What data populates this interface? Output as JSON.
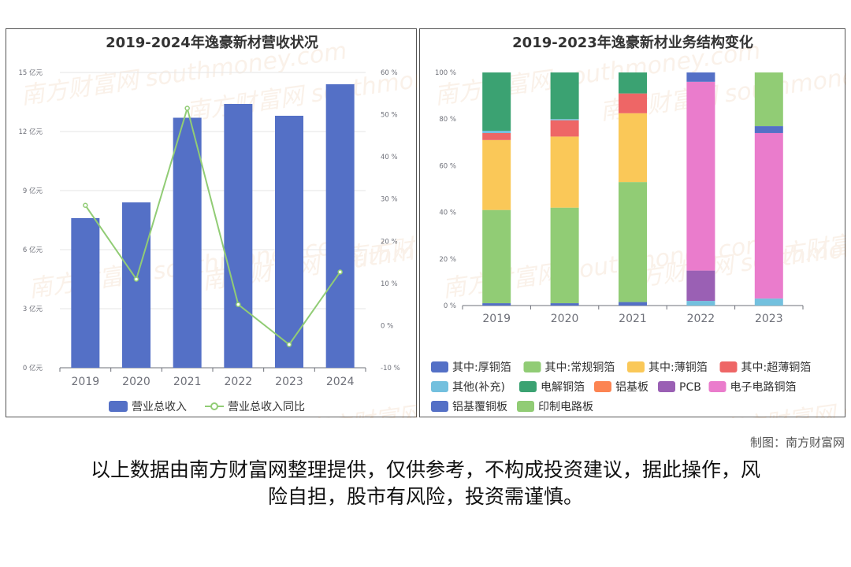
{
  "colors": {
    "bar": "#5470c6",
    "line": "#91cc75",
    "stack": [
      "#5470c6",
      "#91cc75",
      "#fac858",
      "#ee6666",
      "#73c0de",
      "#3ba272",
      "#fc8452",
      "#9a60b4",
      "#ea7ccc",
      "#5470c6",
      "#91cc75"
    ]
  },
  "watermark": "南方财富网 southmoney.com",
  "credit": "制图：南方财富网",
  "disclaimer_line1": "以上数据由南方财富网整理提供，仅供参考，不构成投资建议，据此操作，风",
  "disclaimer_line2": "险自担，股市有风险，投资需谨慎。",
  "chart_data": [
    {
      "type": "bar",
      "title": "2019-2024年逸豪新材营收状况",
      "categories": [
        "2019",
        "2020",
        "2021",
        "2022",
        "2023",
        "2024"
      ],
      "series": [
        {
          "name": "营业总收入",
          "type": "bar",
          "axis": "left",
          "values": [
            7.6,
            8.4,
            12.7,
            13.4,
            12.8,
            14.4
          ]
        },
        {
          "name": "营业总收入同比",
          "type": "line",
          "axis": "right",
          "values": [
            28.5,
            11,
            51.5,
            5,
            -4.5,
            12.7
          ]
        }
      ],
      "y_left": {
        "ylim": [
          0,
          15
        ],
        "ticks": [
          "0 亿元",
          "3 亿元",
          "6 亿元",
          "9 亿元",
          "12 亿元",
          "15 亿元"
        ]
      },
      "y_right": {
        "ylim": [
          -10,
          60
        ],
        "ticks": [
          "-10 %",
          "0 %",
          "10 %",
          "20 %",
          "30 %",
          "40 %",
          "50 %",
          "60 %"
        ]
      },
      "legend": "bottom",
      "grid": true
    },
    {
      "type": "bar",
      "stacked": true,
      "title": "2019-2023年逸豪新材业务结构变化",
      "categories": [
        "2019",
        "2020",
        "2021",
        "2022",
        "2023"
      ],
      "series": [
        {
          "name": "其中:厚铜箔",
          "values": [
            1,
            1,
            1.5,
            0,
            0
          ]
        },
        {
          "name": "其中:常规铜箔",
          "values": [
            40,
            41,
            51.5,
            0,
            0
          ]
        },
        {
          "name": "其中:薄铜箔",
          "values": [
            30,
            30.5,
            29.5,
            0,
            0
          ]
        },
        {
          "name": "其中:超薄铜箔",
          "values": [
            3,
            7,
            8.5,
            0,
            0
          ]
        },
        {
          "name": "其他(补充)",
          "values": [
            1,
            0.5,
            0,
            2,
            3
          ]
        },
        {
          "name": "电解铜箔",
          "values": [
            25,
            20,
            9,
            0,
            0
          ]
        },
        {
          "name": "铝基板",
          "values": [
            0,
            0,
            0,
            0,
            0
          ]
        },
        {
          "name": "PCB",
          "values": [
            0,
            0,
            0,
            13,
            0
          ]
        },
        {
          "name": "电子电路铜箔",
          "values": [
            0,
            0,
            0,
            81,
            71
          ]
        },
        {
          "name": "铝基覆铜板",
          "values": [
            0,
            0,
            0,
            4,
            3
          ]
        },
        {
          "name": "印制电路板",
          "values": [
            0,
            0,
            0,
            0,
            23
          ]
        }
      ],
      "ylim": [
        0,
        100
      ],
      "yticks": [
        "0 %",
        "20 %",
        "40 %",
        "60 %",
        "80 %",
        "100 %"
      ],
      "legend": "bottom",
      "grid": false
    }
  ]
}
